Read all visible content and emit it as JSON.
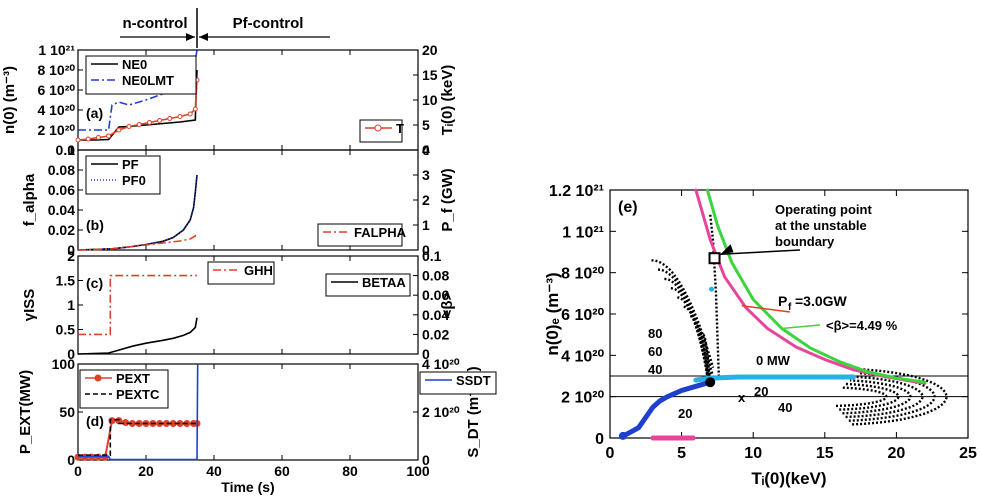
{
  "header": {
    "n_control": "n-control",
    "pf_control": "Pf-control"
  },
  "chart_data": [
    {
      "type": "line",
      "panel": "(a)",
      "ylabel_left": "n(0) (m⁻³)",
      "ylabel_right": "Tᵢ(0) (keV)",
      "ylim_left": [
        0,
        1e+21
      ],
      "ylim_right": [
        0,
        20
      ],
      "yticks_left": [
        "0",
        "2 10²⁰",
        "4 10²⁰",
        "6 10²⁰",
        "8 10²⁰",
        "1 10²¹"
      ],
      "yticks_right": [
        "0",
        "5",
        "10",
        "15",
        "20"
      ],
      "xlim": [
        0,
        100
      ],
      "legend_left": [
        "NE0",
        "NE0LMT"
      ],
      "legend_right": [
        "T"
      ],
      "series": [
        {
          "name": "NE0",
          "axis": "left",
          "color": "#000000",
          "x": [
            0,
            5,
            9,
            12,
            15,
            20,
            25,
            30,
            34.5,
            35
          ],
          "y": [
            1e+20,
            1e+20,
            1.05e+20,
            2.3e+20,
            2.35e+20,
            2.5e+20,
            2.65e+20,
            2.8e+20,
            3e+20,
            8e+20
          ]
        },
        {
          "name": "NE0LMT",
          "axis": "left",
          "color": "#1f3fcf",
          "x": [
            0,
            9,
            10,
            12,
            15,
            20,
            24,
            28,
            31,
            33,
            34.5,
            35
          ],
          "y": [
            2e+20,
            2e+20,
            4.5e+20,
            4.8e+20,
            4.5e+20,
            5e+20,
            5.5e+20,
            6e+20,
            7e+20,
            8e+20,
            9e+20,
            1e+21
          ]
        },
        {
          "name": "T",
          "axis": "right",
          "color": "#e0402a",
          "x": [
            0,
            3,
            6,
            9,
            12,
            15,
            18,
            21,
            24,
            27,
            30,
            33,
            34.5,
            35
          ],
          "y": [
            2.0,
            2.2,
            2.5,
            2.8,
            4.0,
            4.7,
            5.1,
            5.5,
            5.9,
            6.3,
            6.7,
            7.2,
            8.2,
            14.0
          ]
        }
      ]
    },
    {
      "type": "line",
      "panel": "(b)",
      "ylabel_left": "f_alpha",
      "ylabel_right": "P_f (GW)",
      "ylim_left": [
        0,
        0.1
      ],
      "ylim_right": [
        0,
        4
      ],
      "yticks_left": [
        "0",
        "0.02",
        "0.04",
        "0.06",
        "0.08",
        "0.1"
      ],
      "yticks_right": [
        "0",
        "1",
        "2",
        "3",
        "4"
      ],
      "xlim": [
        0,
        100
      ],
      "legend_left": [
        "PF",
        "PF0"
      ],
      "legend_right": [
        "FALPHA"
      ],
      "series": [
        {
          "name": "PF",
          "axis": "right",
          "color": "#000000",
          "x": [
            0,
            10,
            15,
            20,
            25,
            28,
            31,
            33,
            34,
            34.5,
            35
          ],
          "y": [
            0,
            0.05,
            0.12,
            0.22,
            0.35,
            0.5,
            0.8,
            1.2,
            1.7,
            2.3,
            3.0
          ]
        },
        {
          "name": "PF0",
          "axis": "right",
          "color": "#1f3fcf",
          "x": [
            0,
            10,
            15,
            20,
            25,
            28,
            31,
            33,
            34,
            34.5,
            35
          ],
          "y": [
            0,
            0.05,
            0.12,
            0.22,
            0.35,
            0.5,
            0.8,
            1.2,
            1.7,
            2.3,
            3.0
          ]
        },
        {
          "name": "FALPHA",
          "axis": "left",
          "color": "#e0402a",
          "x": [
            0,
            10,
            15,
            20,
            25,
            30,
            33,
            34.5,
            35
          ],
          "y": [
            0,
            0.001,
            0.003,
            0.005,
            0.007,
            0.009,
            0.011,
            0.014,
            0.018
          ]
        }
      ]
    },
    {
      "type": "line",
      "panel": "(c)",
      "ylabel_left": "γISS",
      "ylabel_right": "<β>",
      "ylim_left": [
        0,
        2
      ],
      "ylim_right": [
        0,
        0.1
      ],
      "yticks_left": [
        "0",
        "0.5",
        "1",
        "1.5",
        "2"
      ],
      "yticks_right": [
        "0",
        "0.02",
        "0.04",
        "0.06",
        "0.08",
        "0.1"
      ],
      "xlim": [
        0,
        100
      ],
      "legend_left": [
        "GHH"
      ],
      "legend_right": [
        "BETAA"
      ],
      "series": [
        {
          "name": "GHH",
          "axis": "left",
          "color": "#e0402a",
          "x": [
            0,
            9.5,
            9.5,
            24,
            24,
            35
          ],
          "y": [
            0.4,
            0.4,
            1.6,
            1.6,
            1.6,
            1.6
          ]
        },
        {
          "name": "BETAA",
          "axis": "right",
          "color": "#000000",
          "x": [
            0,
            9,
            12,
            16,
            20,
            25,
            28,
            31,
            33,
            34.5,
            35
          ],
          "y": [
            0,
            0.001,
            0.004,
            0.008,
            0.011,
            0.014,
            0.016,
            0.019,
            0.022,
            0.027,
            0.037
          ]
        }
      ]
    },
    {
      "type": "line",
      "panel": "(d)",
      "xlabel": "Time (s)",
      "ylabel_left": "P_EXT(MW)",
      "ylabel_right": "S_DT (m⁻³/s)",
      "ylim_left": [
        0,
        100
      ],
      "ylim_right": [
        0,
        4e+20
      ],
      "yticks_left": [
        "0",
        "50",
        "100"
      ],
      "yticks_right": [
        "0",
        "2 10²⁰",
        "4 10²⁰"
      ],
      "xlim": [
        0,
        100
      ],
      "xticks": [
        "0",
        "20",
        "40",
        "60",
        "80",
        "100"
      ],
      "legend_left": [
        "PEXT",
        "PEXTC"
      ],
      "legend_right": [
        "SSDT"
      ],
      "series": [
        {
          "name": "PEXT",
          "axis": "left",
          "color": "#e0402a",
          "x": [
            0,
            2,
            4,
            6,
            8,
            10,
            12,
            14,
            16,
            18,
            20,
            22,
            24,
            26,
            28,
            30,
            32,
            34,
            35
          ],
          "y": [
            3,
            3,
            3,
            3,
            3,
            41,
            41,
            39,
            38,
            38,
            38,
            38,
            38,
            38,
            38,
            38,
            38,
            38,
            38
          ]
        },
        {
          "name": "PEXTC",
          "axis": "left",
          "color": "#000000",
          "x": [
            0,
            9.5,
            9.5,
            12,
            12,
            35
          ],
          "y": [
            5,
            5,
            42,
            42,
            38,
            38
          ]
        },
        {
          "name": "SSDT",
          "axis": "right",
          "color": "#1f3fcf",
          "x": [
            0,
            9,
            9.5,
            34.5,
            35,
            35.2
          ],
          "y": [
            1.5e+19,
            1.5e+19,
            2e+18,
            2e+18,
            2e+18,
            4e+20
          ]
        }
      ]
    },
    {
      "type": "line",
      "panel": "(e)",
      "xlabel": "Tᵢ(0)(keV)",
      "ylabel": "n(0)ₑ (m⁻³)",
      "xlim": [
        0,
        25
      ],
      "ylim": [
        0,
        1.2e+21
      ],
      "xticks": [
        "0",
        "5",
        "10",
        "15",
        "20",
        "25"
      ],
      "yticks": [
        "0",
        "2 10²⁰",
        "4 10²⁰",
        "6 10²⁰",
        "8 10²⁰",
        "1 10²¹",
        "1.2 10²¹"
      ],
      "annotations": [
        "Operating point",
        "at the unstable",
        "boundary",
        "P",
        "f",
        "=3.0GW",
        "<β>=4.49 %",
        "0 MW",
        "20",
        "40",
        "20",
        "x",
        "80",
        "60",
        "40"
      ],
      "operating_point": {
        "x": 7.3,
        "y": 8.7e+20
      },
      "hlines": [
        3e+20,
        2e+20
      ],
      "series": [
        {
          "name": "P_f=3.0GW",
          "color": "#e8459a",
          "x": [
            6.0,
            7.0,
            8.0,
            9.5,
            11.0,
            13.0,
            15.0,
            17.0,
            19.0,
            21.0,
            22.0
          ],
          "y": [
            1.2e+21,
            9.6e+20,
            7.8e+20,
            6.3e+20,
            5.3e+20,
            4.4e+20,
            3.8e+20,
            3.3e+20,
            3e+20,
            2.75e+20,
            2.65e+20
          ]
        },
        {
          "name": "<beta>=4.49 %",
          "color": "#3bd43b",
          "x": [
            6.8,
            7.5,
            8.5,
            10.0,
            12.0,
            14.0,
            16.0,
            18.0,
            20.0,
            22.0
          ],
          "y": [
            1.2e+21,
            1.03e+21,
            8.5e+20,
            6.7e+20,
            5.3e+20,
            4.35e+20,
            3.7e+20,
            3.2e+20,
            2.9e+20,
            2.7e+20
          ]
        },
        {
          "name": "operating path",
          "color": "#1f3fcf",
          "x": [
            0.9,
            1.2,
            1.6,
            2.0,
            2.5,
            3.0,
            3.5,
            4.0,
            5.0,
            6.0,
            7.0
          ],
          "y": [
            1e+19,
            2e+19,
            3.5e+19,
            5e+19,
            1e+20,
            1.5e+20,
            1.8e+20,
            2e+20,
            2.3e+20,
            2.5e+20,
            2.7e+20
          ]
        },
        {
          "name": "cyan path",
          "color": "#22b4e6",
          "x": [
            6.0,
            7.0,
            9.0,
            12.0,
            15.0,
            17.0
          ],
          "y": [
            2.8e+20,
            2.9e+20,
            2.95e+20,
            2.95e+20,
            2.95e+20,
            2.95e+20
          ]
        },
        {
          "name": "magenta segment",
          "color": "#e8459a",
          "x": [
            3.0,
            5.8
          ],
          "y": [
            0,
            0
          ]
        }
      ]
    }
  ]
}
